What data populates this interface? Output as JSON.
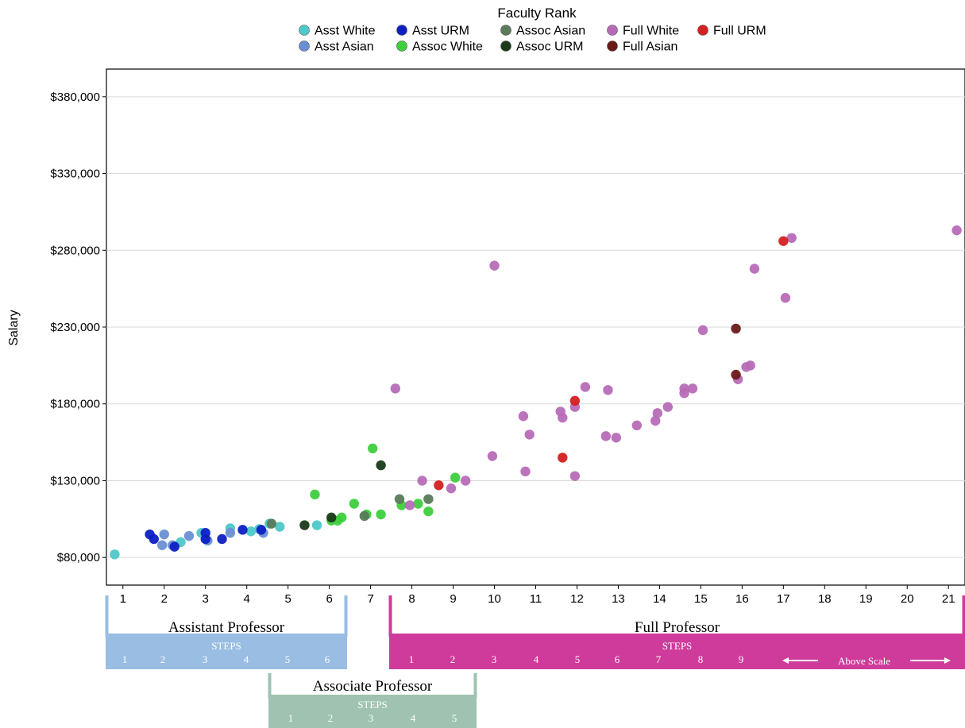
{
  "chart_data": {
    "type": "scatter",
    "legend": {
      "title": "Faculty Rank",
      "placement": "top-center",
      "entries": [
        {
          "key": "asst_white",
          "label": "Asst White",
          "color": "#4ec8c8"
        },
        {
          "key": "asst_asian",
          "label": "Asst Asian",
          "color": "#6a8fd4"
        },
        {
          "key": "asst_urm",
          "label": "Asst URM",
          "color": "#0d1fc4"
        },
        {
          "key": "assoc_white",
          "label": "Assoc White",
          "color": "#3ecf3e"
        },
        {
          "key": "assoc_asian",
          "label": "Assoc Asian",
          "color": "#5a7a5a"
        },
        {
          "key": "assoc_urm",
          "label": "Assoc URM",
          "color": "#1a3a1a"
        },
        {
          "key": "full_white",
          "label": "Full White",
          "color": "#b76bb7"
        },
        {
          "key": "full_asian",
          "label": "Full Asian",
          "color": "#6b1a1a"
        },
        {
          "key": "full_urm",
          "label": "Full URM",
          "color": "#d42020"
        }
      ]
    },
    "ylabel": "Salary",
    "xlabel": "",
    "xlim": [
      0.6,
      21.4
    ],
    "ylim": [
      62000,
      398000
    ],
    "x_ticks": [
      1,
      2,
      3,
      4,
      5,
      6,
      7,
      8,
      9,
      10,
      11,
      12,
      13,
      14,
      15,
      16,
      17,
      18,
      19,
      20,
      21
    ],
    "y_ticks": [
      80000,
      130000,
      180000,
      230000,
      280000,
      330000,
      380000
    ],
    "y_tick_labels": [
      "$80,000",
      "$130,000",
      "$180,000",
      "$230,000",
      "$280,000",
      "$330,000",
      "$380,000"
    ],
    "grid": "horizontal",
    "series": [
      {
        "key": "asst_white",
        "name": "Asst White",
        "points": [
          [
            0.8,
            82000
          ],
          [
            2.4,
            90000
          ],
          [
            2.9,
            96000
          ],
          [
            3.6,
            99000
          ],
          [
            4.1,
            97000
          ],
          [
            4.3,
            98500
          ],
          [
            4.55,
            102000
          ],
          [
            4.8,
            100000
          ],
          [
            5.7,
            101000
          ]
        ]
      },
      {
        "key": "asst_asian",
        "name": "Asst Asian",
        "points": [
          [
            1.95,
            88000
          ],
          [
            2.0,
            95000
          ],
          [
            2.2,
            88000
          ],
          [
            2.6,
            94000
          ],
          [
            3.05,
            91000
          ],
          [
            3.6,
            96000
          ],
          [
            4.4,
            96000
          ]
        ]
      },
      {
        "key": "asst_urm",
        "name": "Asst URM",
        "points": [
          [
            1.65,
            95000
          ],
          [
            1.75,
            92000
          ],
          [
            2.25,
            87000
          ],
          [
            3.0,
            92000
          ],
          [
            3.0,
            96000
          ],
          [
            3.4,
            92000
          ],
          [
            3.9,
            98000
          ],
          [
            4.35,
            98000
          ]
        ]
      },
      {
        "key": "assoc_white",
        "name": "Assoc White",
        "points": [
          [
            5.65,
            121000
          ],
          [
            6.05,
            104000
          ],
          [
            6.2,
            104000
          ],
          [
            6.3,
            106000
          ],
          [
            6.6,
            115000
          ],
          [
            6.9,
            108000
          ],
          [
            7.05,
            151000
          ],
          [
            7.25,
            108000
          ],
          [
            7.75,
            114000
          ],
          [
            8.15,
            115000
          ],
          [
            8.4,
            110000
          ],
          [
            9.05,
            132000
          ]
        ]
      },
      {
        "key": "assoc_asian",
        "name": "Assoc Asian",
        "points": [
          [
            4.6,
            102000
          ],
          [
            6.85,
            107000
          ],
          [
            7.7,
            118000
          ],
          [
            8.4,
            118000
          ]
        ]
      },
      {
        "key": "assoc_urm",
        "name": "Assoc URM",
        "points": [
          [
            5.4,
            101000
          ],
          [
            6.05,
            106000
          ],
          [
            7.25,
            140000
          ]
        ]
      },
      {
        "key": "full_white",
        "name": "Full White",
        "points": [
          [
            7.6,
            190000
          ],
          [
            7.95,
            114000
          ],
          [
            8.25,
            130000
          ],
          [
            8.95,
            125000
          ],
          [
            9.3,
            130000
          ],
          [
            9.95,
            146000
          ],
          [
            10.0,
            270000
          ],
          [
            10.7,
            172000
          ],
          [
            10.75,
            136000
          ],
          [
            10.85,
            160000
          ],
          [
            11.6,
            175000
          ],
          [
            11.65,
            171000
          ],
          [
            11.95,
            133000
          ],
          [
            11.95,
            178000
          ],
          [
            12.2,
            191000
          ],
          [
            12.7,
            159000
          ],
          [
            12.75,
            189000
          ],
          [
            12.95,
            158000
          ],
          [
            13.45,
            166000
          ],
          [
            13.9,
            169000
          ],
          [
            13.95,
            174000
          ],
          [
            14.2,
            178000
          ],
          [
            14.6,
            187000
          ],
          [
            14.6,
            190000
          ],
          [
            14.8,
            190000
          ],
          [
            15.05,
            228000
          ],
          [
            15.9,
            196000
          ],
          [
            16.1,
            204000
          ],
          [
            16.2,
            205000
          ],
          [
            16.3,
            268000
          ],
          [
            17.05,
            249000
          ],
          [
            17.2,
            288000
          ],
          [
            21.2,
            293000
          ]
        ]
      },
      {
        "key": "full_asian",
        "name": "Full Asian",
        "points": [
          [
            15.85,
            229000
          ],
          [
            15.85,
            199000
          ]
        ]
      },
      {
        "key": "full_urm",
        "name": "Full URM",
        "points": [
          [
            8.65,
            127000
          ],
          [
            11.65,
            145000
          ],
          [
            11.95,
            182000
          ],
          [
            17.0,
            286000
          ]
        ]
      }
    ],
    "bands": {
      "assistant": {
        "title": "Assistant Professor",
        "steps_label": "STEPS",
        "steps": [
          "1",
          "2",
          "3",
          "4",
          "5",
          "6"
        ],
        "color": "#99bde3",
        "x_range": [
          0.6,
          6.4
        ]
      },
      "associate": {
        "title": "Associate Professor",
        "steps_label": "STEPS",
        "steps": [
          "1",
          "2",
          "3",
          "4",
          "5"
        ],
        "color": "#9fc3b0",
        "x_range": [
          4.5,
          9.5
        ]
      },
      "full": {
        "title": "Full Professor",
        "steps_label": "STEPS",
        "steps": [
          "1",
          "2",
          "3",
          "4",
          "5",
          "6",
          "7",
          "8",
          "9"
        ],
        "above_scale": "Above Scale",
        "color": "#cf3b9a",
        "x_range": [
          7.45,
          21.4
        ]
      }
    }
  }
}
